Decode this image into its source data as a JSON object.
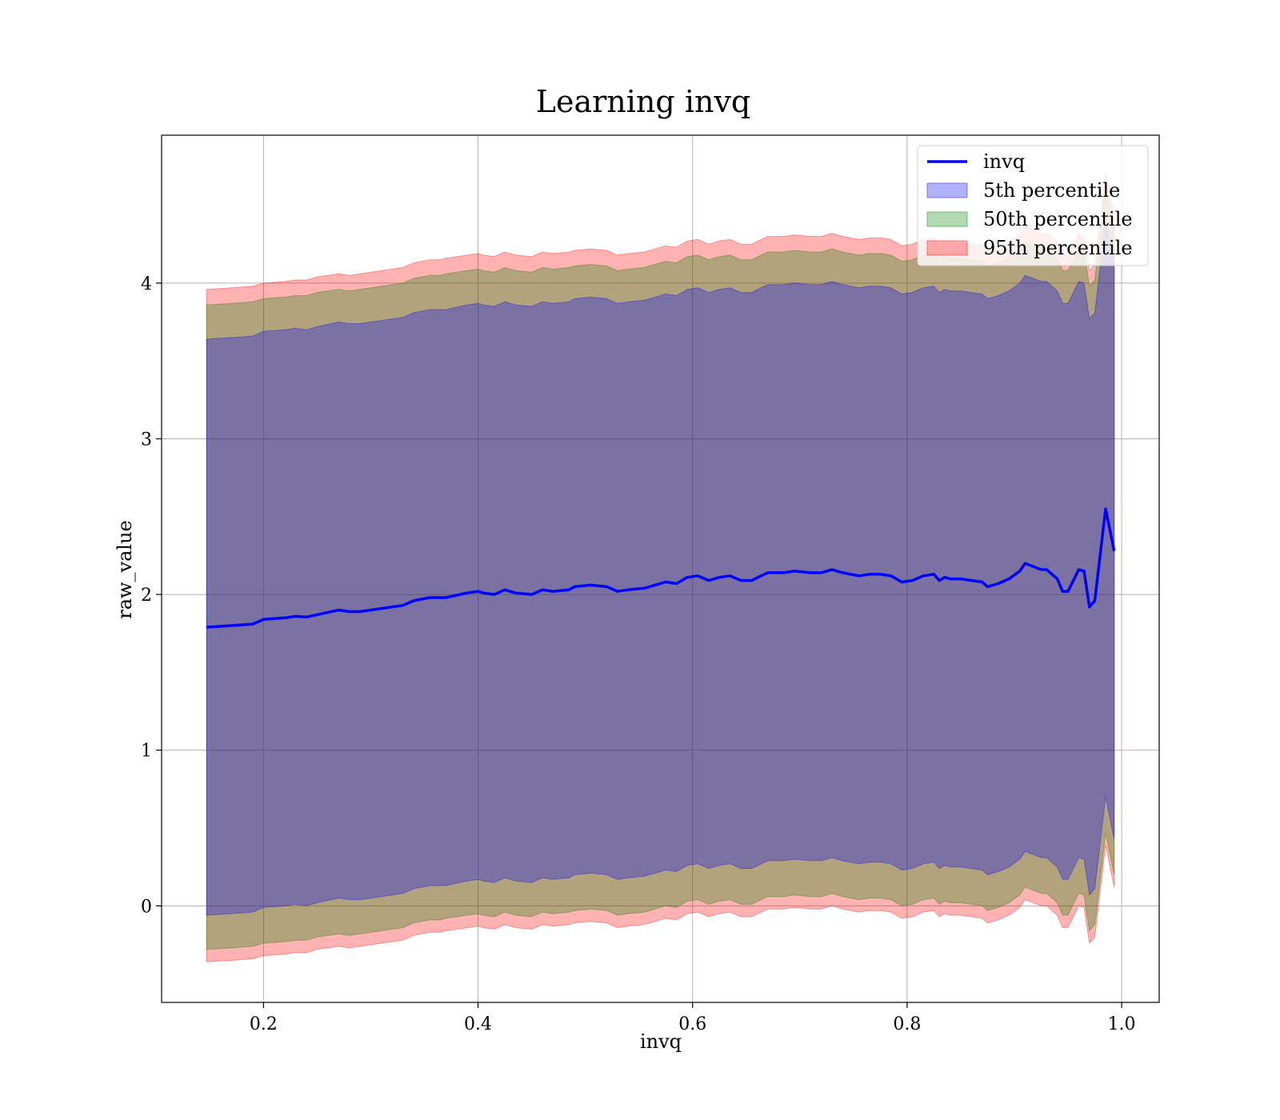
{
  "chart_data": {
    "type": "area",
    "title": "Learning invq",
    "xlabel": "invq",
    "ylabel": "raw_value",
    "xlim": [
      0.105,
      1.035
    ],
    "ylim": [
      -0.62,
      4.95
    ],
    "xticks": [
      0.2,
      0.4,
      0.6,
      0.8,
      1.0
    ],
    "xtick_labels": [
      "0.2",
      "0.4",
      "0.6",
      "0.8",
      "1.0"
    ],
    "yticks": [
      0,
      1,
      2,
      3,
      4
    ],
    "ytick_labels": [
      "0",
      "1",
      "2",
      "3",
      "4"
    ],
    "grid": true,
    "legend_position": "top-right",
    "legend": [
      {
        "label": "invq",
        "kind": "line",
        "color": "#0000ff"
      },
      {
        "label": "5th percentile",
        "kind": "patch",
        "color": "#0000ff"
      },
      {
        "label": "50th percentile",
        "kind": "patch",
        "color": "#008000"
      },
      {
        "label": "95th percentile",
        "kind": "patch",
        "color": "#ff0000"
      }
    ],
    "x": [
      0.147,
      0.17,
      0.19,
      0.2,
      0.22,
      0.23,
      0.24,
      0.25,
      0.27,
      0.28,
      0.29,
      0.31,
      0.32,
      0.33,
      0.34,
      0.355,
      0.365,
      0.37,
      0.39,
      0.4,
      0.405,
      0.415,
      0.425,
      0.435,
      0.45,
      0.46,
      0.47,
      0.485,
      0.49,
      0.505,
      0.52,
      0.53,
      0.54,
      0.555,
      0.575,
      0.585,
      0.595,
      0.605,
      0.615,
      0.625,
      0.635,
      0.645,
      0.655,
      0.67,
      0.68,
      0.685,
      0.695,
      0.71,
      0.72,
      0.73,
      0.74,
      0.755,
      0.765,
      0.775,
      0.785,
      0.795,
      0.805,
      0.815,
      0.825,
      0.83,
      0.835,
      0.84,
      0.85,
      0.86,
      0.87,
      0.875,
      0.885,
      0.895,
      0.905,
      0.91,
      0.925,
      0.93,
      0.94,
      0.945,
      0.95,
      0.96,
      0.965,
      0.97,
      0.975,
      0.985,
      0.993
    ],
    "series": [
      {
        "name": "invq",
        "values": [
          1.79,
          1.8,
          1.81,
          1.84,
          1.85,
          1.86,
          1.855,
          1.87,
          1.9,
          1.89,
          1.89,
          1.91,
          1.92,
          1.93,
          1.96,
          1.98,
          1.98,
          1.98,
          2.01,
          2.02,
          2.01,
          2.0,
          2.03,
          2.01,
          2.0,
          2.03,
          2.02,
          2.03,
          2.05,
          2.06,
          2.05,
          2.02,
          2.03,
          2.04,
          2.08,
          2.07,
          2.11,
          2.12,
          2.09,
          2.11,
          2.12,
          2.09,
          2.09,
          2.14,
          2.14,
          2.14,
          2.15,
          2.14,
          2.14,
          2.16,
          2.14,
          2.12,
          2.13,
          2.13,
          2.12,
          2.08,
          2.09,
          2.12,
          2.13,
          2.09,
          2.11,
          2.1,
          2.1,
          2.09,
          2.08,
          2.05,
          2.07,
          2.1,
          2.15,
          2.2,
          2.16,
          2.16,
          2.1,
          2.02,
          2.02,
          2.16,
          2.15,
          1.92,
          1.96,
          2.55,
          2.28
        ]
      }
    ],
    "bands": [
      {
        "name": "95th percentile",
        "upper": [
          3.96,
          3.97,
          3.98,
          4.0,
          4.01,
          4.02,
          4.02,
          4.04,
          4.06,
          4.05,
          4.06,
          4.08,
          4.09,
          4.1,
          4.13,
          4.15,
          4.15,
          4.16,
          4.18,
          4.19,
          4.18,
          4.17,
          4.2,
          4.18,
          4.17,
          4.2,
          4.19,
          4.2,
          4.21,
          4.22,
          4.21,
          4.18,
          4.19,
          4.2,
          4.24,
          4.23,
          4.27,
          4.28,
          4.25,
          4.27,
          4.28,
          4.25,
          4.25,
          4.3,
          4.3,
          4.3,
          4.31,
          4.3,
          4.3,
          4.32,
          4.3,
          4.28,
          4.29,
          4.29,
          4.28,
          4.24,
          4.25,
          4.28,
          4.29,
          4.25,
          4.27,
          4.26,
          4.26,
          4.25,
          4.24,
          4.21,
          4.23,
          4.26,
          4.31,
          4.36,
          4.32,
          4.32,
          4.26,
          4.18,
          4.18,
          4.32,
          4.31,
          4.08,
          4.12,
          4.71,
          4.44
        ],
        "lower": [
          -0.36,
          -0.35,
          -0.34,
          -0.32,
          -0.31,
          -0.3,
          -0.3,
          -0.28,
          -0.26,
          -0.27,
          -0.26,
          -0.24,
          -0.23,
          -0.22,
          -0.19,
          -0.17,
          -0.17,
          -0.16,
          -0.14,
          -0.13,
          -0.14,
          -0.15,
          -0.12,
          -0.14,
          -0.15,
          -0.12,
          -0.13,
          -0.12,
          -0.11,
          -0.1,
          -0.11,
          -0.14,
          -0.13,
          -0.12,
          -0.08,
          -0.09,
          -0.05,
          -0.04,
          -0.07,
          -0.05,
          -0.04,
          -0.07,
          -0.07,
          -0.02,
          -0.02,
          -0.02,
          -0.01,
          -0.02,
          -0.02,
          0.0,
          -0.02,
          -0.04,
          -0.03,
          -0.03,
          -0.04,
          -0.08,
          -0.07,
          -0.04,
          -0.03,
          -0.07,
          -0.05,
          -0.06,
          -0.06,
          -0.07,
          -0.08,
          -0.11,
          -0.09,
          -0.06,
          -0.01,
          0.04,
          0.0,
          0.0,
          -0.06,
          -0.14,
          -0.14,
          0.0,
          -0.01,
          -0.24,
          -0.2,
          0.39,
          0.12
        ]
      },
      {
        "name": "50th percentile",
        "upper": [
          3.86,
          3.87,
          3.88,
          3.9,
          3.91,
          3.92,
          3.92,
          3.94,
          3.96,
          3.95,
          3.96,
          3.98,
          3.99,
          4.0,
          4.03,
          4.05,
          4.05,
          4.06,
          4.08,
          4.09,
          4.08,
          4.07,
          4.1,
          4.08,
          4.07,
          4.1,
          4.09,
          4.1,
          4.11,
          4.12,
          4.11,
          4.08,
          4.09,
          4.1,
          4.14,
          4.13,
          4.17,
          4.18,
          4.15,
          4.17,
          4.18,
          4.15,
          4.15,
          4.2,
          4.2,
          4.2,
          4.21,
          4.2,
          4.2,
          4.22,
          4.2,
          4.18,
          4.19,
          4.19,
          4.18,
          4.14,
          4.15,
          4.18,
          4.19,
          4.15,
          4.17,
          4.16,
          4.16,
          4.15,
          4.14,
          4.11,
          4.13,
          4.16,
          4.21,
          4.26,
          4.22,
          4.22,
          4.16,
          4.08,
          4.08,
          4.22,
          4.21,
          3.98,
          4.02,
          4.61,
          4.34
        ],
        "lower": [
          -0.28,
          -0.27,
          -0.26,
          -0.24,
          -0.23,
          -0.22,
          -0.22,
          -0.2,
          -0.18,
          -0.19,
          -0.18,
          -0.16,
          -0.15,
          -0.14,
          -0.11,
          -0.09,
          -0.09,
          -0.08,
          -0.06,
          -0.05,
          -0.06,
          -0.07,
          -0.04,
          -0.06,
          -0.07,
          -0.04,
          -0.05,
          -0.04,
          -0.03,
          -0.02,
          -0.03,
          -0.06,
          -0.05,
          -0.04,
          0.0,
          -0.01,
          0.03,
          0.04,
          0.01,
          0.03,
          0.04,
          0.01,
          0.01,
          0.06,
          0.06,
          0.06,
          0.07,
          0.06,
          0.06,
          0.08,
          0.06,
          0.04,
          0.05,
          0.05,
          0.04,
          0.0,
          0.01,
          0.04,
          0.05,
          0.01,
          0.03,
          0.02,
          0.02,
          0.01,
          0.0,
          -0.03,
          -0.01,
          0.02,
          0.07,
          0.12,
          0.08,
          0.08,
          0.02,
          -0.06,
          -0.06,
          0.08,
          0.07,
          -0.16,
          -0.12,
          0.47,
          0.2
        ]
      },
      {
        "name": "5th percentile",
        "upper": [
          3.64,
          3.65,
          3.66,
          3.69,
          3.7,
          3.71,
          3.7,
          3.72,
          3.75,
          3.74,
          3.74,
          3.76,
          3.77,
          3.78,
          3.81,
          3.83,
          3.83,
          3.83,
          3.86,
          3.87,
          3.86,
          3.85,
          3.88,
          3.86,
          3.85,
          3.88,
          3.87,
          3.88,
          3.9,
          3.91,
          3.9,
          3.87,
          3.88,
          3.89,
          3.93,
          3.92,
          3.96,
          3.97,
          3.94,
          3.96,
          3.97,
          3.94,
          3.94,
          3.99,
          3.99,
          3.99,
          4.0,
          3.99,
          3.99,
          4.01,
          3.99,
          3.97,
          3.98,
          3.98,
          3.97,
          3.93,
          3.94,
          3.97,
          3.98,
          3.94,
          3.96,
          3.95,
          3.95,
          3.94,
          3.93,
          3.9,
          3.92,
          3.95,
          4.0,
          4.05,
          4.01,
          4.01,
          3.95,
          3.87,
          3.87,
          4.01,
          4.0,
          3.77,
          3.81,
          4.4,
          4.13
        ],
        "lower": [
          -0.06,
          -0.05,
          -0.04,
          -0.01,
          0.0,
          0.01,
          0.0,
          0.02,
          0.05,
          0.04,
          0.04,
          0.06,
          0.07,
          0.08,
          0.11,
          0.13,
          0.13,
          0.13,
          0.16,
          0.17,
          0.16,
          0.15,
          0.18,
          0.16,
          0.15,
          0.18,
          0.17,
          0.18,
          0.2,
          0.21,
          0.2,
          0.17,
          0.18,
          0.19,
          0.23,
          0.22,
          0.26,
          0.27,
          0.24,
          0.26,
          0.27,
          0.24,
          0.24,
          0.29,
          0.29,
          0.29,
          0.3,
          0.29,
          0.29,
          0.31,
          0.29,
          0.27,
          0.28,
          0.28,
          0.27,
          0.23,
          0.24,
          0.27,
          0.28,
          0.24,
          0.26,
          0.25,
          0.25,
          0.24,
          0.23,
          0.2,
          0.22,
          0.25,
          0.3,
          0.35,
          0.31,
          0.31,
          0.25,
          0.17,
          0.17,
          0.31,
          0.3,
          0.07,
          0.11,
          0.7,
          0.43
        ]
      }
    ],
    "colors": {
      "line": "#0000ff",
      "band_5th": "#0000ff",
      "band_50th": "#008000",
      "band_95th": "#ff0000",
      "band_alpha": 0.3
    }
  }
}
